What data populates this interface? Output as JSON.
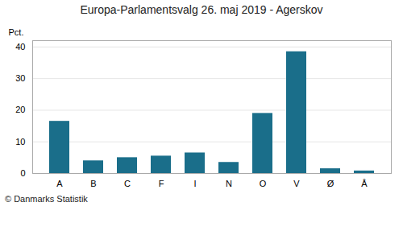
{
  "chart_data": {
    "type": "bar",
    "title": "Europa-Parlamentsvalg 26. maj 2019 - Agerskov",
    "categories": [
      "A",
      "B",
      "C",
      "F",
      "I",
      "N",
      "O",
      "V",
      "Ø",
      "Å"
    ],
    "values": [
      16.5,
      4.0,
      5.0,
      5.5,
      6.5,
      3.5,
      19.0,
      38.5,
      1.5,
      0.8
    ],
    "color": "#1a6e8a",
    "ylabel": "Pct.",
    "ylim": [
      0,
      42
    ],
    "yticks": [
      0,
      10,
      20,
      30,
      40
    ],
    "grid": true,
    "caption": "© Danmarks Statistik"
  }
}
